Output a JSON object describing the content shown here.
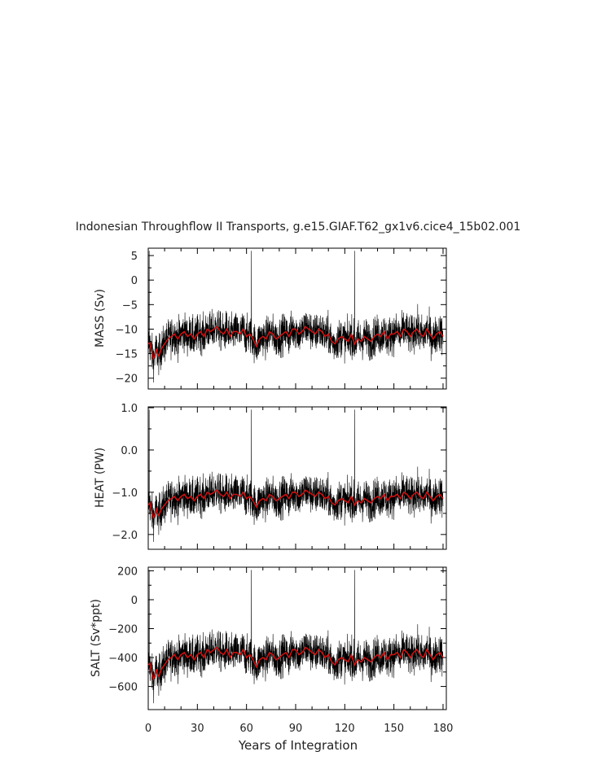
{
  "chart_data": {
    "type": "line",
    "title": "Indonesian Throughflow II Transports, g.e15.GIAF.T62_gx1v6.cice4_15b02.001",
    "xlabel": "Years of Integration",
    "x_range": [
      0,
      182
    ],
    "x_ticks": [
      0,
      30,
      60,
      90,
      120,
      150,
      180
    ],
    "grid": false,
    "colors": {
      "monthly": "#000000",
      "annual": "#cc1111"
    },
    "panels": [
      {
        "ylabel": "MASS (Sv)",
        "y_range": [
          -22.2,
          6.5
        ],
        "y_ticks": [
          5,
          0,
          -5,
          -10,
          -15,
          -20
        ],
        "y_tick_labels": [
          "5",
          "0",
          "−5",
          "−10",
          "−15",
          "−20"
        ],
        "series": [
          {
            "x": [
              0,
              1,
              2,
              3,
              4,
              5,
              6,
              7,
              8,
              9,
              10,
              12,
              14,
              16,
              18,
              20,
              22,
              24,
              26,
              28,
              30,
              32,
              34,
              36,
              38,
              40,
              42,
              44,
              46,
              48,
              50,
              52,
              54,
              56,
              58,
              60,
              62,
              64,
              66,
              68,
              70,
              72,
              74,
              76,
              78,
              80,
              82,
              84,
              86,
              88,
              90,
              92,
              94,
              96,
              98,
              100,
              102,
              104,
              106,
              108,
              110,
              112,
              114,
              116,
              118,
              120,
              122,
              124,
              126,
              128,
              130,
              132,
              134,
              136,
              138,
              140,
              142,
              144,
              146,
              148,
              150,
              152,
              154,
              156,
              158,
              160,
              162,
              164,
              166,
              168,
              170,
              172,
              174,
              176,
              178,
              180
            ],
            "values": [
              -13.0,
              -12.8,
              -14.5,
              -16.0,
              -15.5,
              -14.0,
              -15.5,
              -15.0,
              -14.0,
              -13.5,
              -13.0,
              -12.0,
              -11.5,
              -11.0,
              -12.0,
              -11.0,
              -10.5,
              -11.5,
              -11.0,
              -12.0,
              -11.0,
              -10.5,
              -11.5,
              -10.0,
              -10.5,
              -10.0,
              -9.5,
              -10.5,
              -11.0,
              -10.0,
              -11.5,
              -10.5,
              -10.5,
              -11.0,
              -10.0,
              -11.5,
              -11.0,
              -12.0,
              -13.5,
              -12.0,
              -11.5,
              -12.0,
              -10.5,
              -11.0,
              -12.0,
              -11.5,
              -11.0,
              -10.5,
              -11.5,
              -10.0,
              -10.0,
              -11.0,
              -10.5,
              -9.5,
              -10.0,
              -10.5,
              -11.0,
              -10.0,
              -10.5,
              -11.5,
              -11.0,
              -12.5,
              -13.0,
              -12.0,
              -11.5,
              -12.0,
              -12.5,
              -11.0,
              -13.0,
              -12.0,
              -12.5,
              -11.5,
              -12.0,
              -12.5,
              -11.5,
              -11.0,
              -11.5,
              -10.5,
              -12.0,
              -11.0,
              -11.0,
              -10.5,
              -11.5,
              -10.0,
              -10.5,
              -11.5,
              -10.5,
              -10.0,
              -11.0,
              -11.5,
              -10.0,
              -11.0,
              -12.0,
              -11.0,
              -10.5,
              -11.5
            ]
          }
        ]
      },
      {
        "ylabel": "HEAT (PW)",
        "y_range": [
          -2.35,
          1.02
        ],
        "y_ticks": [
          1.0,
          0.0,
          -1.0,
          -2.0
        ],
        "y_tick_labels": [
          "1.0",
          "0.0",
          "−1.0",
          "−2.0"
        ],
        "series": [
          {
            "x": [
              0,
              1,
              2,
              3,
              4,
              5,
              6,
              7,
              8,
              9,
              10,
              12,
              14,
              16,
              18,
              20,
              22,
              24,
              26,
              28,
              30,
              32,
              34,
              36,
              38,
              40,
              42,
              44,
              46,
              48,
              50,
              52,
              54,
              56,
              58,
              60,
              62,
              64,
              66,
              68,
              70,
              72,
              74,
              76,
              78,
              80,
              82,
              84,
              86,
              88,
              90,
              92,
              94,
              96,
              98,
              100,
              102,
              104,
              106,
              108,
              110,
              112,
              114,
              116,
              118,
              120,
              122,
              124,
              126,
              128,
              130,
              132,
              134,
              136,
              138,
              140,
              142,
              144,
              146,
              148,
              150,
              152,
              154,
              156,
              158,
              160,
              162,
              164,
              166,
              168,
              170,
              172,
              174,
              176,
              178,
              180
            ],
            "values": [
              -1.3,
              -1.25,
              -1.45,
              -1.6,
              -1.55,
              -1.4,
              -1.55,
              -1.5,
              -1.4,
              -1.35,
              -1.3,
              -1.2,
              -1.15,
              -1.1,
              -1.2,
              -1.1,
              -1.05,
              -1.15,
              -1.1,
              -1.2,
              -1.1,
              -1.05,
              -1.15,
              -1.0,
              -1.05,
              -1.0,
              -0.95,
              -1.05,
              -1.1,
              -1.0,
              -1.15,
              -1.05,
              -1.05,
              -1.1,
              -1.0,
              -1.15,
              -1.1,
              -1.2,
              -1.35,
              -1.2,
              -1.15,
              -1.2,
              -1.05,
              -1.1,
              -1.2,
              -1.15,
              -1.1,
              -1.05,
              -1.15,
              -1.0,
              -1.0,
              -1.1,
              -1.05,
              -0.95,
              -1.0,
              -1.05,
              -1.1,
              -1.0,
              -1.05,
              -1.15,
              -1.1,
              -1.25,
              -1.3,
              -1.2,
              -1.15,
              -1.2,
              -1.25,
              -1.1,
              -1.3,
              -1.2,
              -1.25,
              -1.15,
              -1.2,
              -1.25,
              -1.15,
              -1.1,
              -1.15,
              -1.05,
              -1.2,
              -1.1,
              -1.1,
              -1.05,
              -1.15,
              -1.0,
              -1.05,
              -1.15,
              -1.05,
              -1.0,
              -1.1,
              -1.15,
              -1.0,
              -1.1,
              -1.2,
              -1.1,
              -1.05,
              -1.15
            ]
          }
        ]
      },
      {
        "ylabel": "SALT (Sv*ppt)",
        "y_range": [
          -760,
          225
        ],
        "y_ticks": [
          200,
          0,
          -200,
          -400,
          -600
        ],
        "y_tick_labels": [
          "200",
          "0",
          "−200",
          "−400",
          "−600"
        ],
        "series": [
          {
            "x": [
              0,
              1,
              2,
              3,
              4,
              5,
              6,
              7,
              8,
              9,
              10,
              12,
              14,
              16,
              18,
              20,
              22,
              24,
              26,
              28,
              30,
              32,
              34,
              36,
              38,
              40,
              42,
              44,
              46,
              48,
              50,
              52,
              54,
              56,
              58,
              60,
              62,
              64,
              66,
              68,
              70,
              72,
              74,
              76,
              78,
              80,
              82,
              84,
              86,
              88,
              90,
              92,
              94,
              96,
              98,
              100,
              102,
              104,
              106,
              108,
              110,
              112,
              114,
              116,
              118,
              120,
              122,
              124,
              126,
              128,
              130,
              132,
              134,
              136,
              138,
              140,
              142,
              144,
              146,
              148,
              150,
              152,
              154,
              156,
              158,
              160,
              162,
              164,
              166,
              168,
              170,
              172,
              174,
              176,
              178,
              180
            ],
            "values": [
              -450,
              -440,
              -500,
              -550,
              -530,
              -480,
              -530,
              -515,
              -480,
              -465,
              -450,
              -415,
              -400,
              -380,
              -415,
              -380,
              -365,
              -400,
              -380,
              -415,
              -380,
              -365,
              -400,
              -345,
              -365,
              -345,
              -330,
              -365,
              -380,
              -345,
              -400,
              -365,
              -365,
              -380,
              -345,
              -400,
              -380,
              -415,
              -465,
              -415,
              -400,
              -415,
              -365,
              -380,
              -415,
              -400,
              -380,
              -365,
              -400,
              -345,
              -345,
              -380,
              -365,
              -330,
              -345,
              -365,
              -380,
              -345,
              -365,
              -400,
              -380,
              -430,
              -450,
              -415,
              -400,
              -415,
              -430,
              -380,
              -450,
              -415,
              -430,
              -400,
              -415,
              -430,
              -400,
              -380,
              -400,
              -365,
              -415,
              -380,
              -380,
              -365,
              -400,
              -345,
              -365,
              -400,
              -365,
              -345,
              -380,
              -400,
              -345,
              -380,
              -415,
              -380,
              -365,
              -400
            ]
          }
        ]
      }
    ]
  }
}
